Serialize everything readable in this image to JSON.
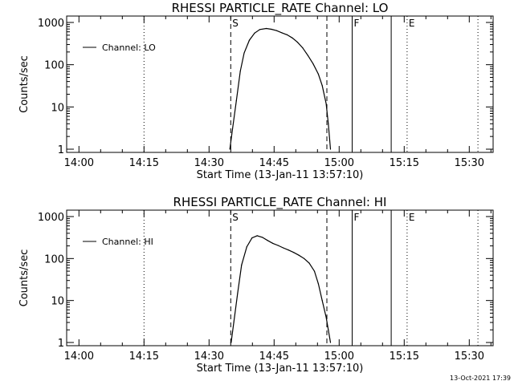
{
  "chart_data": [
    {
      "type": "line",
      "title": "RHESSI PARTICLE_RATE Channel: LO",
      "xlabel": "Start Time (13-Jan-11 13:57:10)",
      "ylabel": "Counts/sec",
      "yscale": "log",
      "ylim": [
        1,
        1000
      ],
      "xlim": [
        "13:57:10",
        "15:35:30"
      ],
      "x_ticks": [
        "14:00",
        "14:15",
        "14:30",
        "14:45",
        "15:00",
        "15:15",
        "15:30"
      ],
      "y_ticks": [
        "1",
        "10",
        "100",
        "1000"
      ],
      "legend": "top-left",
      "series": [
        {
          "name": "Channel: LO",
          "x": [
            "14:34:48",
            "14:35:24",
            "14:36:18",
            "14:37:12",
            "14:38:06",
            "14:39:18",
            "14:40:30",
            "14:41:42",
            "14:43:12",
            "14:44:24",
            "14:45:36",
            "14:46:48",
            "14:48:00",
            "14:49:12",
            "14:50:24",
            "14:51:36",
            "14:52:48",
            "14:54:00",
            "14:55:12",
            "14:56:06",
            "14:57:00",
            "14:57:30",
            "14:58:00"
          ],
          "y": [
            1,
            3,
            14,
            70,
            190,
            380,
            560,
            680,
            720,
            690,
            640,
            570,
            510,
            430,
            340,
            250,
            165,
            105,
            60,
            32,
            12,
            4,
            1
          ]
        }
      ],
      "markers": [
        {
          "label": "S",
          "time": "14:35:00",
          "style": "dashed"
        },
        {
          "label": "",
          "time": "14:57:10",
          "style": "dashed"
        },
        {
          "label": "F",
          "time": "15:03:00",
          "style": "solid"
        },
        {
          "label": "",
          "time": "15:12:00",
          "style": "solid"
        },
        {
          "label": "E",
          "time": "15:15:40",
          "style": "dotted"
        },
        {
          "label": "",
          "time": "14:15:00",
          "style": "dotted"
        },
        {
          "label": "",
          "time": "15:32:00",
          "style": "dotted"
        }
      ]
    },
    {
      "type": "line",
      "title": "RHESSI PARTICLE_RATE Channel: HI",
      "xlabel": "Start Time (13-Jan-11 13:57:10)",
      "ylabel": "Counts/sec",
      "yscale": "log",
      "ylim": [
        1,
        1000
      ],
      "xlim": [
        "13:57:10",
        "15:35:30"
      ],
      "x_ticks": [
        "14:00",
        "14:15",
        "14:30",
        "14:45",
        "15:00",
        "15:15",
        "15:30"
      ],
      "y_ticks": [
        "1",
        "10",
        "100",
        "1000"
      ],
      "legend": "top-left",
      "series": [
        {
          "name": "Channel: HI",
          "x": [
            "14:35:06",
            "14:35:42",
            "14:36:36",
            "14:37:30",
            "14:38:42",
            "14:39:54",
            "14:41:06",
            "14:42:18",
            "14:43:30",
            "14:44:42",
            "14:45:54",
            "14:47:06",
            "14:48:18",
            "14:49:30",
            "14:50:42",
            "14:51:54",
            "14:53:06",
            "14:54:18",
            "14:55:12",
            "14:56:06",
            "14:57:00",
            "14:57:30",
            "14:58:00"
          ],
          "y": [
            1,
            3,
            15,
            70,
            190,
            310,
            350,
            320,
            270,
            230,
            205,
            180,
            160,
            140,
            120,
            100,
            78,
            50,
            25,
            10,
            4,
            2,
            1
          ]
        }
      ],
      "markers": [
        {
          "label": "S",
          "time": "14:35:00",
          "style": "dashed"
        },
        {
          "label": "",
          "time": "14:57:10",
          "style": "dashed"
        },
        {
          "label": "F",
          "time": "15:03:00",
          "style": "solid"
        },
        {
          "label": "",
          "time": "15:12:00",
          "style": "solid"
        },
        {
          "label": "E",
          "time": "15:15:40",
          "style": "dotted"
        },
        {
          "label": "",
          "time": "14:15:00",
          "style": "dotted"
        },
        {
          "label": "",
          "time": "15:32:00",
          "style": "dotted"
        }
      ]
    }
  ],
  "footer": {
    "timestamp": "13-Oct-2021 17:39"
  }
}
